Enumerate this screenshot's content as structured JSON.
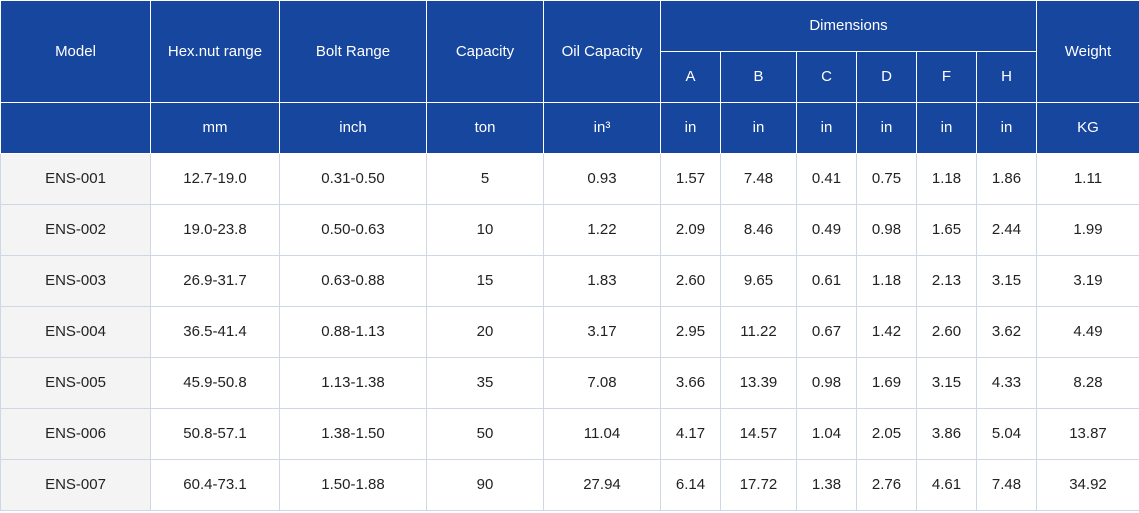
{
  "header": {
    "model": "Model",
    "hex_nut_range": "Hex.nut range",
    "bolt_range": "Bolt Range",
    "capacity": "Capacity",
    "oil_capacity": "Oil Capacity",
    "dimensions": "Dimensions",
    "weight": "Weight",
    "dims": [
      "A",
      "B",
      "C",
      "D",
      "F",
      "H"
    ],
    "units": {
      "hex": "mm",
      "bolt": "inch",
      "capacity": "ton",
      "oil": "in³",
      "dims": [
        "in",
        "in",
        "in",
        "in",
        "in",
        "in"
      ],
      "weight": "KG"
    }
  },
  "rows": [
    [
      "ENS-001",
      "12.7-19.0",
      "0.31-0.50",
      "5",
      "0.93",
      "1.57",
      "7.48",
      "0.41",
      "0.75",
      "1.18",
      "1.86",
      "1.11"
    ],
    [
      "ENS-002",
      "19.0-23.8",
      "0.50-0.63",
      "10",
      "1.22",
      "2.09",
      "8.46",
      "0.49",
      "0.98",
      "1.65",
      "2.44",
      "1.99"
    ],
    [
      "ENS-003",
      "26.9-31.7",
      "0.63-0.88",
      "15",
      "1.83",
      "2.60",
      "9.65",
      "0.61",
      "1.18",
      "2.13",
      "3.15",
      "3.19"
    ],
    [
      "ENS-004",
      "36.5-41.4",
      "0.88-1.13",
      "20",
      "3.17",
      "2.95",
      "11.22",
      "0.67",
      "1.42",
      "2.60",
      "3.62",
      "4.49"
    ],
    [
      "ENS-005",
      "45.9-50.8",
      "1.13-1.38",
      "35",
      "7.08",
      "3.66",
      "13.39",
      "0.98",
      "1.69",
      "3.15",
      "4.33",
      "8.28"
    ],
    [
      "ENS-006",
      "50.8-57.1",
      "1.38-1.50",
      "50",
      "11.04",
      "4.17",
      "14.57",
      "1.04",
      "2.05",
      "3.86",
      "5.04",
      "13.87"
    ],
    [
      "ENS-007",
      "60.4-73.1",
      "1.50-1.88",
      "90",
      "27.94",
      "6.14",
      "17.72",
      "1.38",
      "2.76",
      "4.61",
      "7.48",
      "34.92"
    ]
  ]
}
